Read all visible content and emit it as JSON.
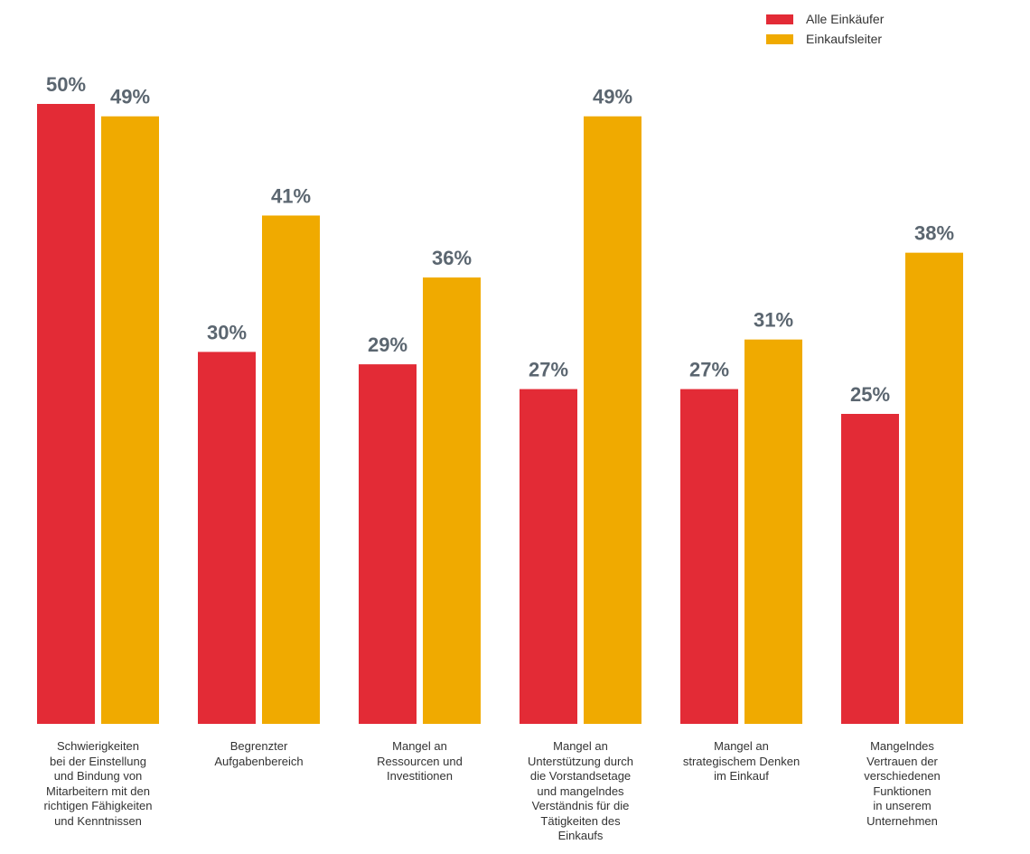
{
  "colors": {
    "Alle Einkäufer": "#e32b36",
    "Einkaufsleiter": "#f0aa00",
    "value_label": "#5b6670"
  },
  "chart_data": {
    "type": "bar",
    "ylim": [
      0,
      50
    ],
    "legend_position": "top-right",
    "grid": false,
    "categories": [
      "Schwierigkeiten\nbei der Einstellung\nund Bindung von\nMitarbeitern mit den\nrichtigen Fähigkeiten\nund Kenntnissen",
      "Begrenzter\nAufgabenbereich",
      "Mangel an\nRessourcen und\nInvestitionen",
      "Mangel an\nUnterstützung durch\ndie Vorstandsetage\nund mangelndes\nVerständnis für die\nTätigkeiten des\nEinkaufs",
      "Mangel an\nstrategischem Denken\nim Einkauf",
      "Mangelndes\nVertrauen der\nverschiedenen\nFunktionen\nin unserem\nUnternehmen"
    ],
    "series": [
      {
        "name": "Alle Einkäufer",
        "values": [
          50,
          30,
          29,
          27,
          27,
          25
        ],
        "labels": [
          "50%",
          "30%",
          "29%",
          "27%",
          "27%",
          "25%"
        ]
      },
      {
        "name": "Einkaufsleiter",
        "values": [
          49,
          41,
          36,
          49,
          31,
          38
        ],
        "labels": [
          "49%",
          "41%",
          "36%",
          "49%",
          "31%",
          "38%"
        ]
      }
    ]
  }
}
